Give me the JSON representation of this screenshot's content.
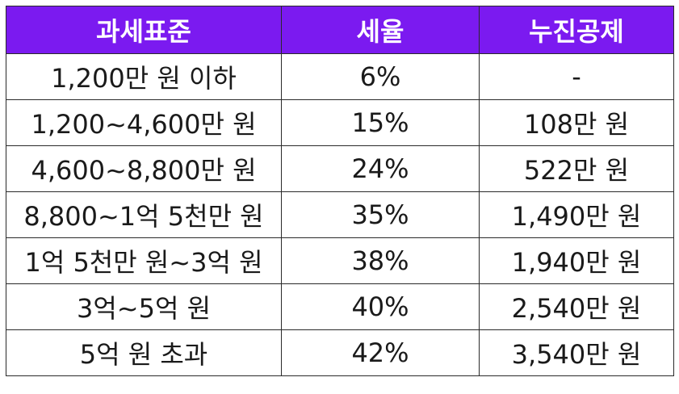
{
  "colors": {
    "header_background": "#7b1af0",
    "header_text": "#ffffff",
    "cell_text": "#1a1a1a",
    "border": "#2a2a2a"
  },
  "table": {
    "headers": [
      "과세표준",
      "세율",
      "누진공제"
    ],
    "rows": [
      [
        "1,200만 원 이하",
        "6%",
        "-"
      ],
      [
        "1,200~4,600만 원",
        "15%",
        "108만 원"
      ],
      [
        "4,600~8,800만 원",
        "24%",
        "522만 원"
      ],
      [
        "8,800~1억 5천만 원",
        "35%",
        "1,490만 원"
      ],
      [
        "1억 5천만 원~3억 원",
        "38%",
        "1,940만 원"
      ],
      [
        "3억~5억 원",
        "40%",
        "2,540만 원"
      ],
      [
        "5억 원 초과",
        "42%",
        "3,540만 원"
      ]
    ]
  }
}
